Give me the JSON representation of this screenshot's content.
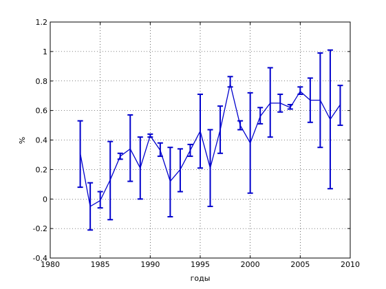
{
  "chart_data": {
    "type": "line",
    "title": "",
    "xlabel": "годы",
    "ylabel": "%",
    "xlim": [
      1980,
      2010
    ],
    "ylim": [
      -0.4,
      1.2
    ],
    "xticks": [
      1980,
      1985,
      1990,
      1995,
      2000,
      2005,
      2010
    ],
    "yticks": [
      -0.4,
      -0.2,
      0,
      0.2,
      0.4,
      0.6,
      0.8,
      1,
      1.2
    ],
    "xtick_labels": [
      "1980",
      "1985",
      "1990",
      "1995",
      "2000",
      "2005",
      "2010"
    ],
    "ytick_labels": [
      "-0.4",
      "-0.2",
      "0",
      "0.2",
      "0.4",
      "0.6",
      "0.8",
      "1",
      "1.2"
    ],
    "grid": true,
    "grid_style": "dotted",
    "line_color": "#0000cc",
    "series": [
      {
        "x": [
          1983,
          1984,
          1985,
          1986,
          1987,
          1988,
          1989,
          1990,
          1991,
          1992,
          1993,
          1994,
          1995,
          1996,
          1997,
          1998,
          1999,
          2000,
          2001,
          2002,
          2003,
          2004,
          2005,
          2006,
          2007,
          2008,
          2009
        ],
        "y": [
          0.31,
          -0.05,
          -0.01,
          0.13,
          0.29,
          0.34,
          0.21,
          0.43,
          0.33,
          0.12,
          0.2,
          0.33,
          0.46,
          0.21,
          0.47,
          0.78,
          0.5,
          0.38,
          0.56,
          0.65,
          0.65,
          0.62,
          0.73,
          0.67,
          0.67,
          0.54,
          0.64
        ],
        "err_low": [
          0.08,
          -0.21,
          -0.06,
          -0.14,
          0.27,
          0.12,
          0.0,
          0.42,
          0.29,
          -0.12,
          0.05,
          0.29,
          0.21,
          -0.05,
          0.31,
          0.76,
          0.47,
          0.04,
          0.51,
          0.42,
          0.59,
          0.61,
          0.71,
          0.52,
          0.35,
          0.07,
          0.5
        ],
        "err_high": [
          0.53,
          0.11,
          0.05,
          0.39,
          0.31,
          0.57,
          0.42,
          0.44,
          0.38,
          0.35,
          0.34,
          0.37,
          0.71,
          0.47,
          0.63,
          0.83,
          0.53,
          0.72,
          0.62,
          0.89,
          0.71,
          0.64,
          0.76,
          0.82,
          0.99,
          1.01,
          0.77
        ]
      }
    ]
  }
}
